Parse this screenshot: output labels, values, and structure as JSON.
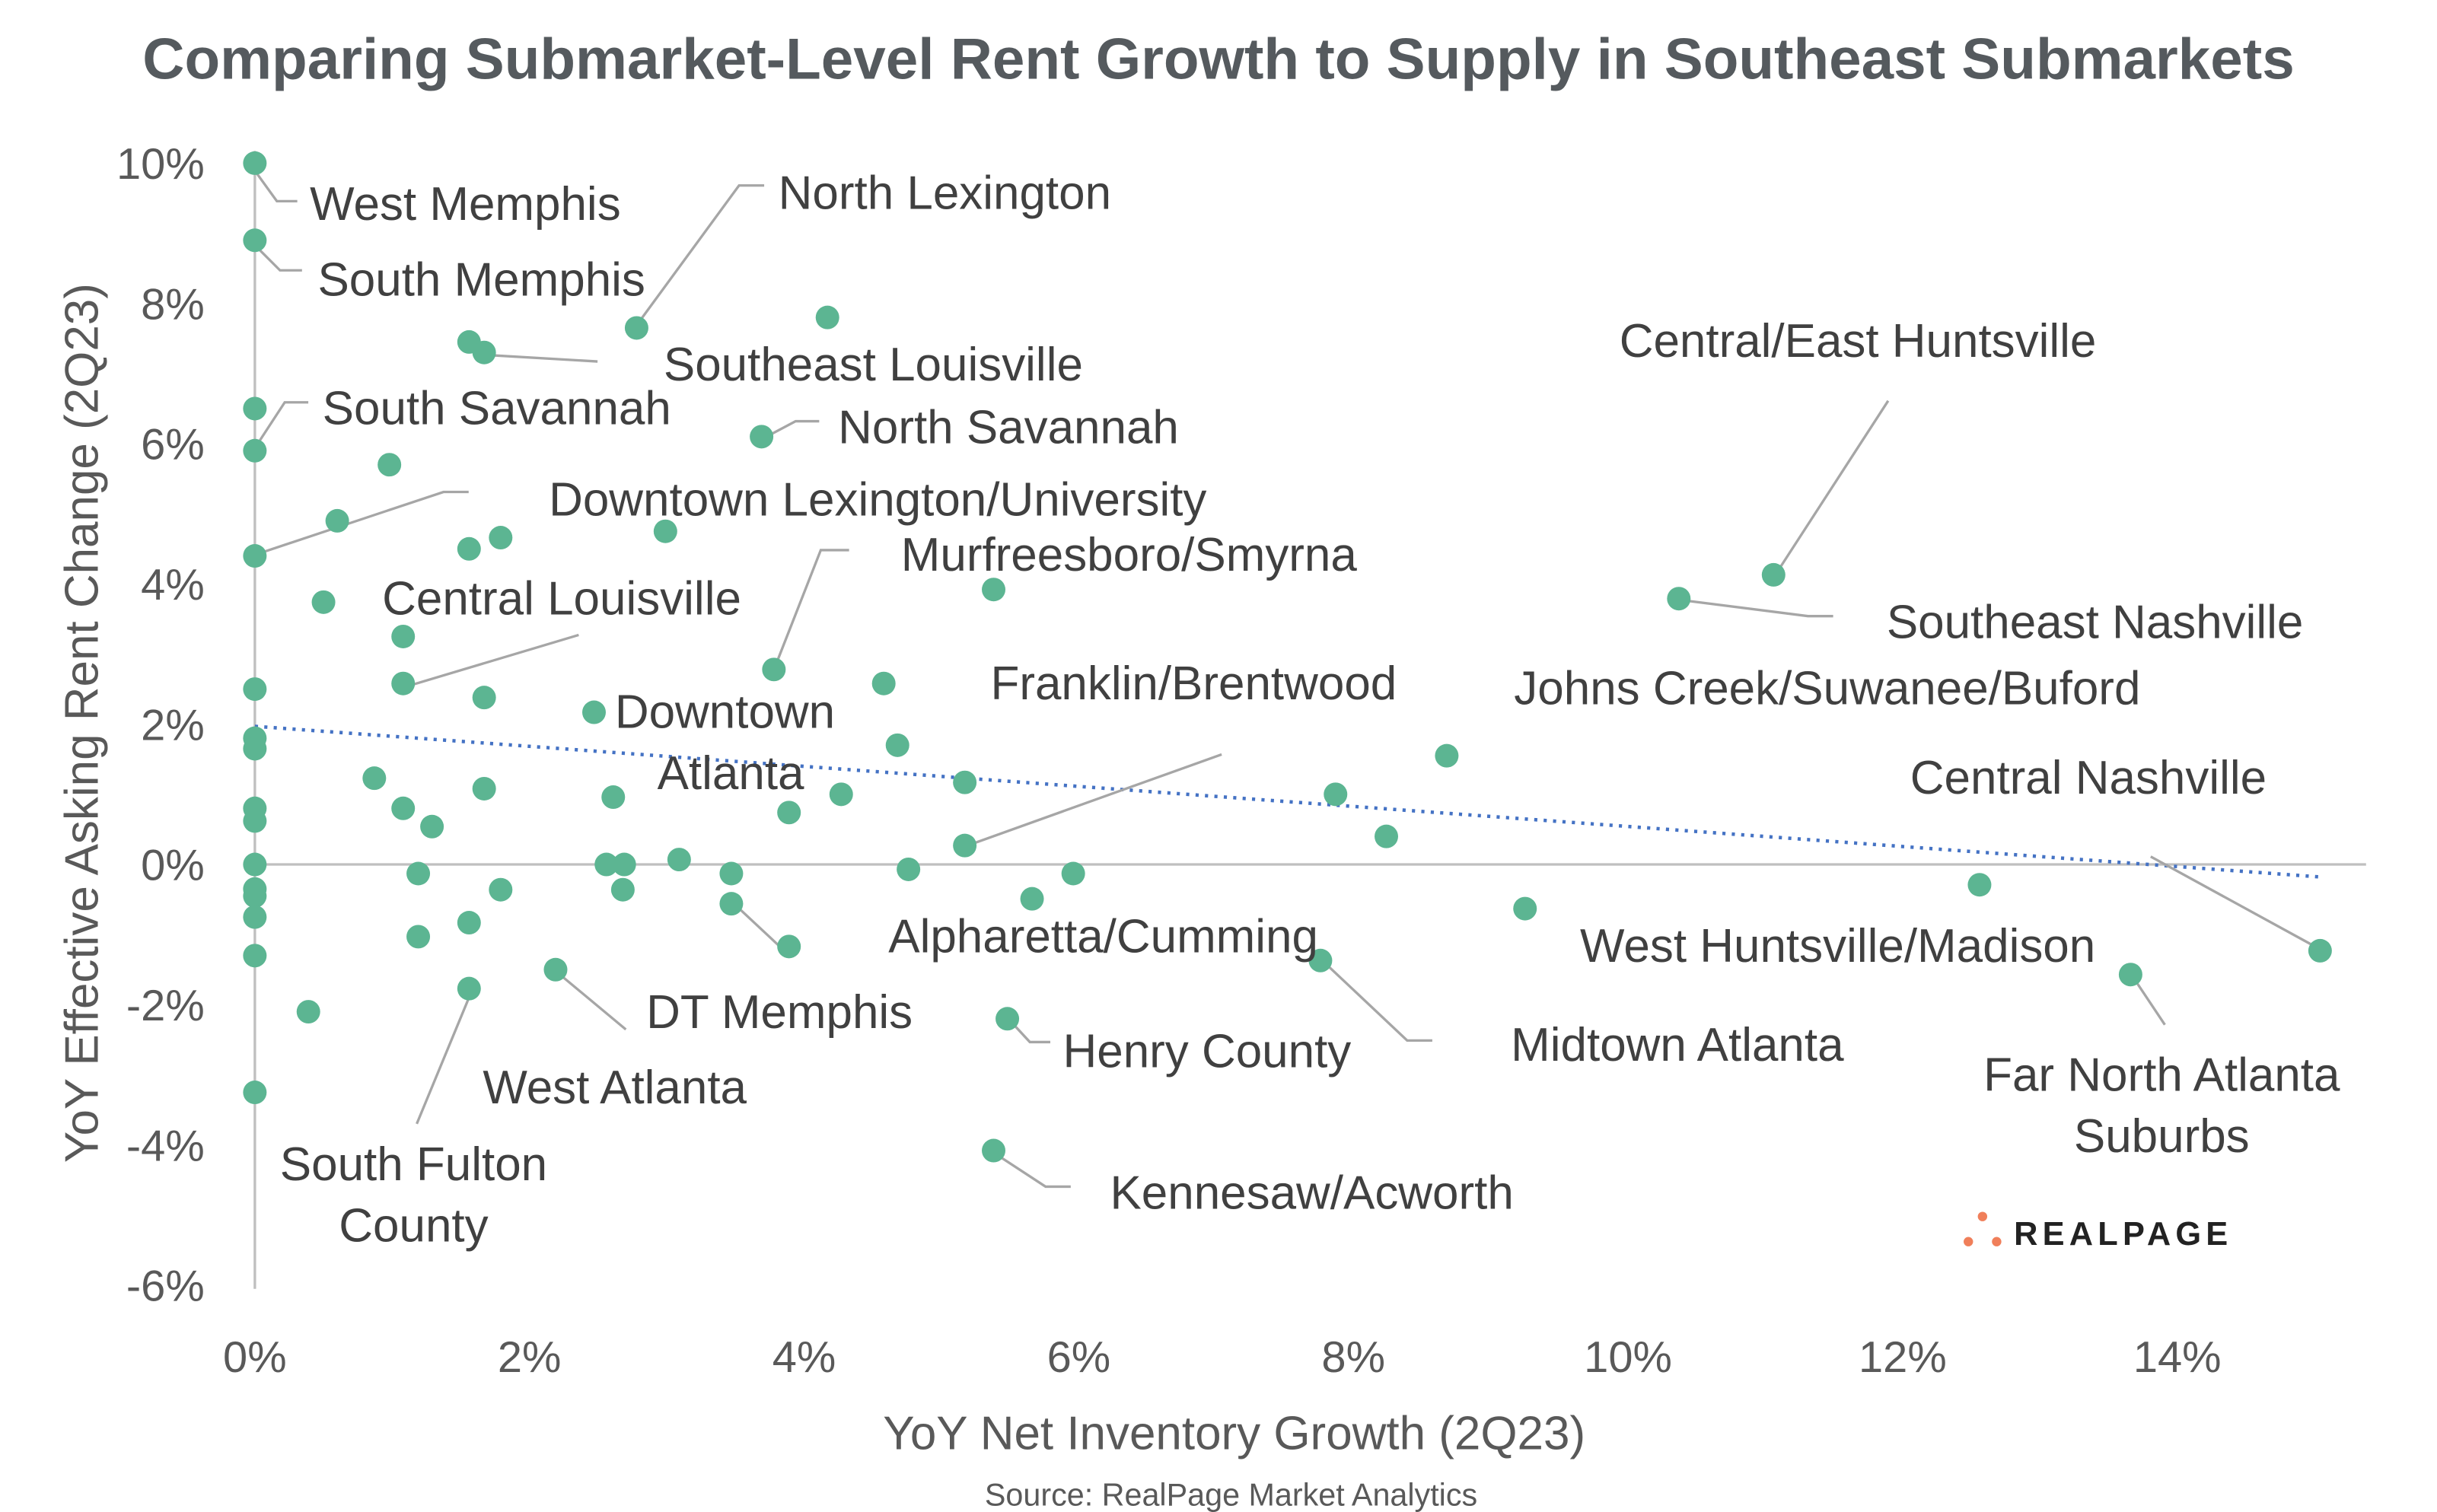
{
  "chart_data": {
    "type": "scatter",
    "title": "Comparing Submarket-Level Rent Growth to Supply in Southeast Submarkets",
    "xlabel": "YoY Net Inventory Growth (2Q23)",
    "ylabel": "YoY Effective Asking Rent Change (2Q23)",
    "source": "Source: RealPage Market Analytics",
    "logo": "REALPAGE",
    "xlim": [
      0,
      15.2
    ],
    "ylim": [
      -6,
      10
    ],
    "xticks": [
      "0%",
      "2%",
      "4%",
      "6%",
      "8%",
      "10%",
      "12%",
      "14%"
    ],
    "yticks": [
      "10%",
      "8%",
      "6%",
      "4%",
      "2%",
      "0%",
      "-2%",
      "-4%",
      "-6%"
    ],
    "colors": {
      "points": "#5cb592",
      "trend": "#4472c4",
      "logo": "#f07f5a"
    },
    "trendline": {
      "type": "linear",
      "start": [
        0,
        1.97
      ],
      "end": [
        15.05,
        -0.18
      ]
    },
    "points": [
      [
        0,
        10.0
      ],
      [
        0,
        8.9
      ],
      [
        0,
        6.5
      ],
      [
        0,
        5.9
      ],
      [
        0,
        4.4
      ],
      [
        0,
        2.5
      ],
      [
        0,
        1.8
      ],
      [
        0,
        1.65
      ],
      [
        0,
        0.8
      ],
      [
        0,
        0.62
      ],
      [
        0,
        0
      ],
      [
        0,
        -0.35
      ],
      [
        0,
        -0.45
      ],
      [
        0,
        -0.75
      ],
      [
        0,
        -1.3
      ],
      [
        0,
        -3.25
      ],
      [
        1.56,
        7.45
      ],
      [
        1.67,
        7.3
      ],
      [
        2.78,
        7.65
      ],
      [
        4.17,
        7.8
      ],
      [
        3.69,
        6.1
      ],
      [
        0.98,
        5.7
      ],
      [
        0.6,
        4.9
      ],
      [
        1.56,
        4.5
      ],
      [
        1.79,
        4.66
      ],
      [
        2.99,
        4.75
      ],
      [
        5.38,
        3.92
      ],
      [
        0.5,
        3.74
      ],
      [
        1.08,
        3.25
      ],
      [
        1.08,
        2.58
      ],
      [
        1.67,
        2.38
      ],
      [
        3.78,
        2.78
      ],
      [
        4.58,
        2.58
      ],
      [
        2.47,
        2.17
      ],
      [
        4.68,
        1.7
      ],
      [
        5.17,
        1.17
      ],
      [
        0.87,
        1.23
      ],
      [
        1.67,
        1.08
      ],
      [
        4.27,
        1.0
      ],
      [
        2.61,
        0.96
      ],
      [
        3.89,
        0.74
      ],
      [
        1.08,
        0.8
      ],
      [
        1.29,
        0.54
      ],
      [
        5.17,
        0.27
      ],
      [
        3.09,
        0.07
      ],
      [
        2.56,
        0
      ],
      [
        2.69,
        0
      ],
      [
        1.19,
        -0.13
      ],
      [
        3.47,
        -0.13
      ],
      [
        4.76,
        -0.07
      ],
      [
        5.96,
        -0.13
      ],
      [
        1.79,
        -0.36
      ],
      [
        2.68,
        -0.36
      ],
      [
        3.47,
        -0.56
      ],
      [
        5.66,
        -0.49
      ],
      [
        1.56,
        -0.83
      ],
      [
        1.19,
        -1.03
      ],
      [
        3.89,
        -1.17
      ],
      [
        2.19,
        -1.5
      ],
      [
        1.56,
        -1.77
      ],
      [
        0.39,
        -2.1
      ],
      [
        5.48,
        -2.2
      ],
      [
        5.38,
        -4.08
      ],
      [
        7.76,
        -1.37
      ],
      [
        7.87,
        1.0
      ],
      [
        8.24,
        0.4
      ],
      [
        8.68,
        1.55
      ],
      [
        9.25,
        -0.63
      ],
      [
        10.37,
        3.79
      ],
      [
        11.06,
        4.13
      ],
      [
        12.56,
        -0.29
      ],
      [
        13.66,
        -1.57
      ],
      [
        15.04,
        -1.23
      ]
    ],
    "annotations": [
      "West Memphis",
      "South Memphis",
      "North Lexington",
      "Southeast Louisville",
      "South Savannah",
      "North Savannah",
      "Downtown Lexington/University",
      "Murfreesboro/Smyrna",
      "Central Louisville",
      "Downtown",
      "Atlanta",
      "Franklin/Brentwood",
      "Central/East Huntsville",
      "Southeast Nashville",
      "Johns Creek/Suwanee/Buford",
      "Central Nashville",
      "Alpharetta/Cumming",
      "West Huntsville/Madison",
      "DT Memphis",
      "Henry County",
      "Midtown Atlanta",
      "Far North Atlanta",
      "Suburbs",
      "West Atlanta",
      "Kennesaw/Acworth",
      "South Fulton",
      "County"
    ]
  }
}
